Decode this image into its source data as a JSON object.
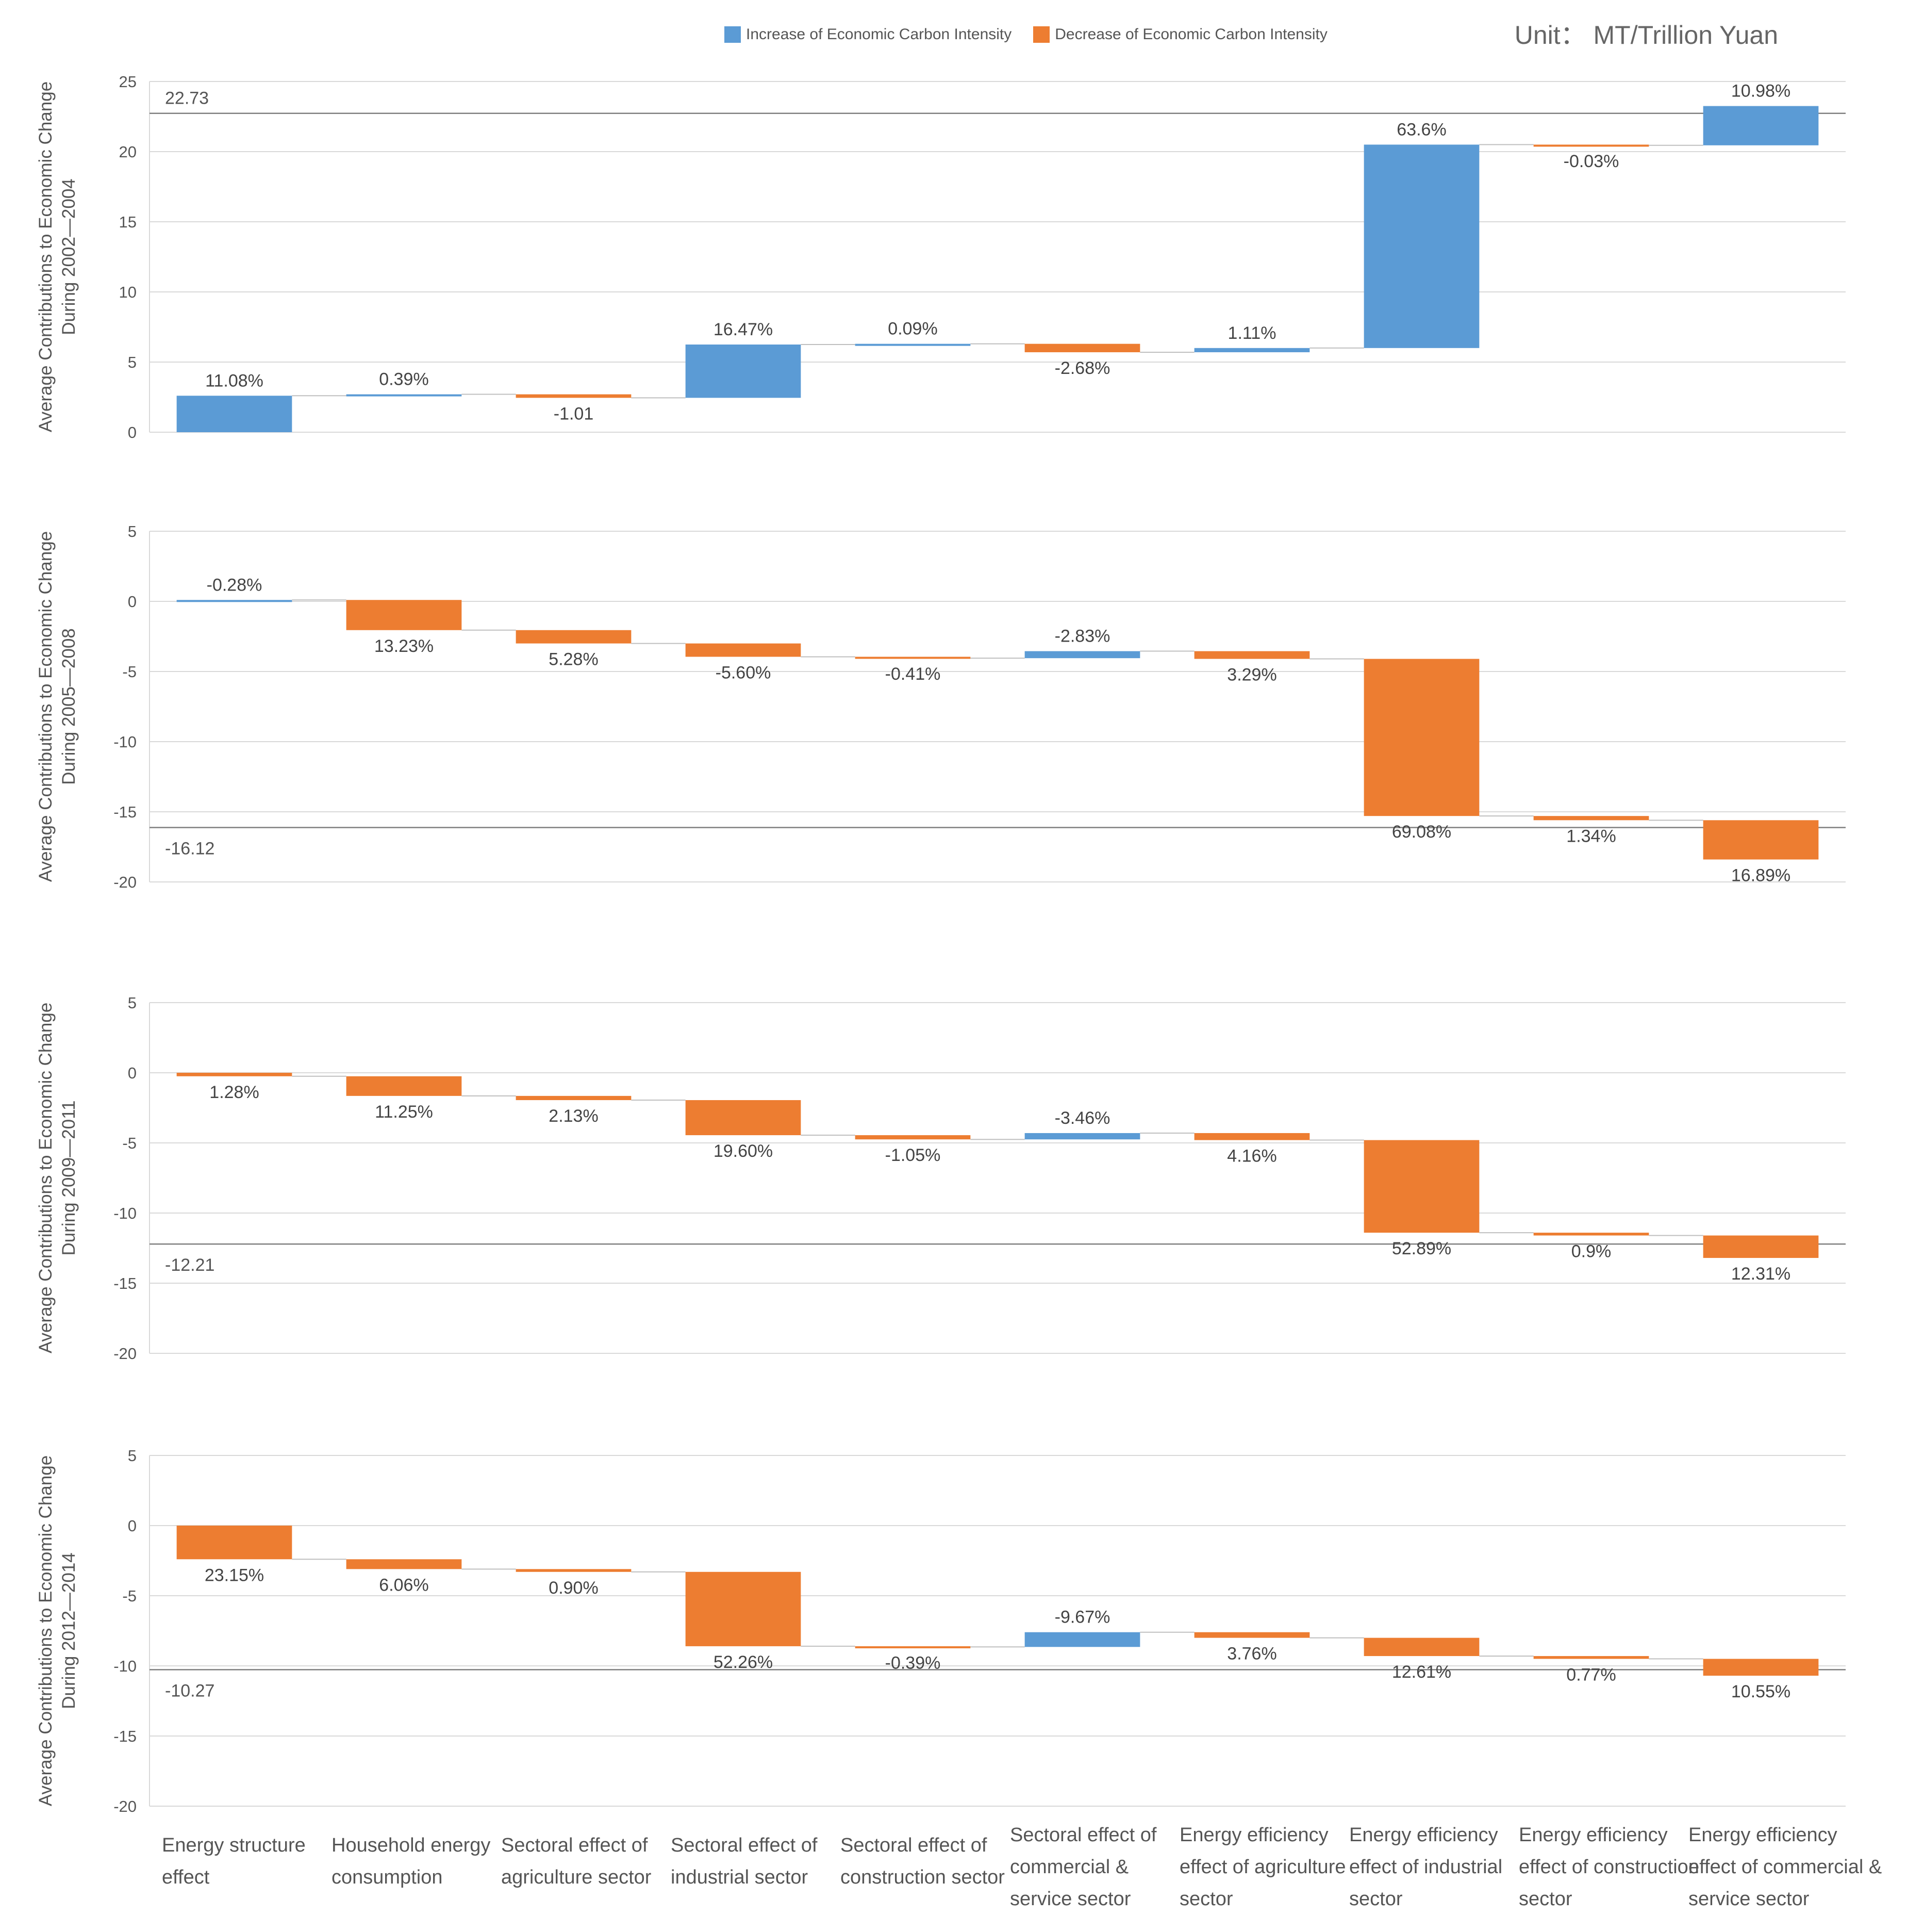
{
  "unit_label": "Unit： MT/Trillion Yuan",
  "legend": [
    {
      "label": "Increase of Economic Carbon Intensity",
      "color": "#5b9bd5"
    },
    {
      "label": "Decrease of Economic Carbon Intensity",
      "color": "#ed7d31"
    }
  ],
  "colors": {
    "increase": "#5b9bd5",
    "decrease": "#ed7d31",
    "grid": "#d9d9d9",
    "line": "#7f7f7f"
  },
  "chart_data": {
    "type": "waterfall",
    "categories": [
      [
        "Energy structure",
        "effect"
      ],
      [
        "Household energy",
        "consumption"
      ],
      [
        "Sectoral effect of",
        "agriculture sector"
      ],
      [
        "Sectoral effect of",
        "industrial sector"
      ],
      [
        "Sectoral effect of",
        "construction sector"
      ],
      [
        "Sectoral effect of",
        "commercial &",
        "service sector"
      ],
      [
        "Energy efficiency",
        "effect of agriculture",
        "sector"
      ],
      [
        "Energy efficiency",
        "effect of industrial",
        "sector"
      ],
      [
        "Energy efficiency",
        "effect of construction",
        "sector"
      ],
      [
        "Energy efficiency",
        "effect of commercial &",
        "service sector"
      ]
    ],
    "panels": [
      {
        "ylabel": [
          "Average Contributions to Economic Change",
          "During 2002—2004"
        ],
        "ylim": [
          0,
          25
        ],
        "yticks": [
          0,
          5,
          10,
          15,
          20,
          25
        ],
        "total": 22.73,
        "total_label": "22.73",
        "deltas": [
          2.6,
          0.1,
          -0.25,
          3.8,
          0.05,
          -0.6,
          0.3,
          14.5,
          -0.05,
          2.8
        ],
        "labels": [
          "11.08%",
          "0.39%",
          "-1.01",
          "16.47%",
          "0.09%",
          "-2.68%",
          "1.11%",
          "63.6%",
          "-0.03%",
          "10.98%"
        ]
      },
      {
        "ylabel": [
          "Average Contributions to Economic Change",
          "During 2005—2008"
        ],
        "ylim": [
          -20,
          5
        ],
        "yticks": [
          -20,
          -15,
          -10,
          -5,
          0,
          5
        ],
        "total": -16.12,
        "total_label": "-16.12",
        "deltas": [
          0.1,
          -2.15,
          -0.95,
          -0.95,
          -0.1,
          0.5,
          -0.55,
          -11.2,
          -0.3,
          -2.8
        ],
        "labels": [
          "-0.28%",
          "13.23%",
          "5.28%",
          "-5.60%",
          "-0.41%",
          "-2.83%",
          "3.29%",
          "69.08%",
          "1.34%",
          "16.89%"
        ]
      },
      {
        "ylabel": [
          "Average Contributions to Economic Change",
          "During 2009—2011"
        ],
        "ylim": [
          -20,
          5
        ],
        "yticks": [
          -20,
          -15,
          -10,
          -5,
          0,
          5
        ],
        "total": -12.21,
        "total_label": "-12.21",
        "deltas": [
          -0.25,
          -1.4,
          -0.3,
          -2.5,
          -0.3,
          0.45,
          -0.5,
          -6.6,
          -0.2,
          -1.6
        ],
        "labels": [
          "1.28%",
          "11.25%",
          "2.13%",
          "19.60%",
          "-1.05%",
          "-3.46%",
          "4.16%",
          "52.89%",
          "0.9%",
          "12.31%"
        ]
      },
      {
        "ylabel": [
          "Average Contributions to Economic Change",
          "During 2012—2014"
        ],
        "ylim": [
          -20,
          5
        ],
        "yticks": [
          -20,
          -15,
          -10,
          -5,
          0,
          5
        ],
        "total": -10.27,
        "total_label": "-10.27",
        "deltas": [
          -2.4,
          -0.7,
          -0.2,
          -5.3,
          -0.05,
          1.05,
          -0.4,
          -1.3,
          -0.2,
          -1.2
        ],
        "labels": [
          "23.15%",
          "6.06%",
          "0.90%",
          "52.26%",
          "-0.39%",
          "-9.67%",
          "3.76%",
          "12.61%",
          "0.77%",
          "10.55%"
        ]
      }
    ]
  }
}
